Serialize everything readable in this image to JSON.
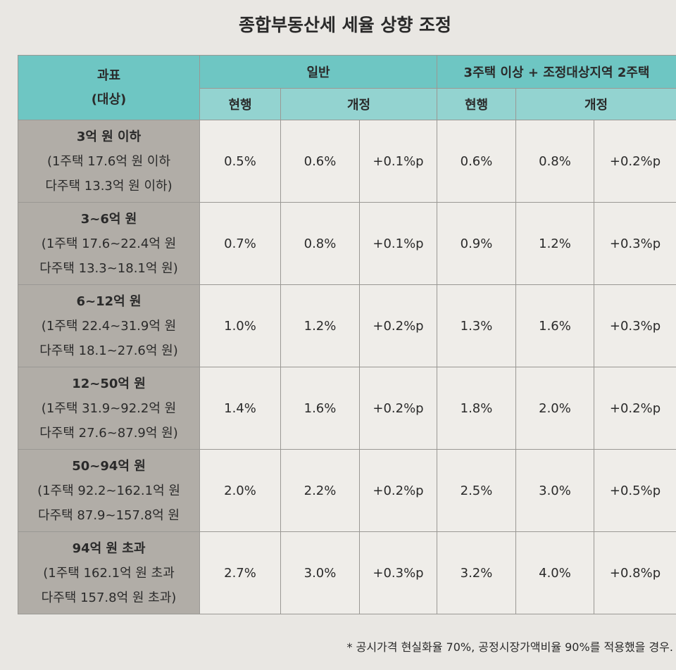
{
  "title": "종합부동산세 세율 상향 조정",
  "table": {
    "header": {
      "label": [
        "과표",
        "(대상)"
      ],
      "groups": [
        "일반",
        "3주택 이상 + 조정대상지역 2주택"
      ],
      "sub": [
        "현행",
        "개정",
        "현행",
        "개정"
      ]
    },
    "rows": [
      {
        "label": [
          "3억 원 이하",
          "(1주택 17.6억 원 이하",
          "다주택 13.3억 원 이하)"
        ],
        "cells": [
          "0.5%",
          "0.6%",
          "+0.1%p",
          "0.6%",
          "0.8%",
          "+0.2%p"
        ]
      },
      {
        "label": [
          "3~6억 원",
          "(1주택 17.6~22.4억 원",
          "다주택 13.3~18.1억 원)"
        ],
        "cells": [
          "0.7%",
          "0.8%",
          "+0.1%p",
          "0.9%",
          "1.2%",
          "+0.3%p"
        ]
      },
      {
        "label": [
          "6~12억 원",
          "(1주택 22.4~31.9억 원",
          "다주택 18.1~27.6억 원)"
        ],
        "cells": [
          "1.0%",
          "1.2%",
          "+0.2%p",
          "1.3%",
          "1.6%",
          "+0.3%p"
        ]
      },
      {
        "label": [
          "12~50억 원",
          "(1주택 31.9~92.2억 원",
          "다주택 27.6~87.9억 원)"
        ],
        "cells": [
          "1.4%",
          "1.6%",
          "+0.2%p",
          "1.8%",
          "2.0%",
          "+0.2%p"
        ]
      },
      {
        "label": [
          "50~94억 원",
          "(1주택 92.2~162.1억 원",
          "다주택 87.9~157.8억 원"
        ],
        "cells": [
          "2.0%",
          "2.2%",
          "+0.2%p",
          "2.5%",
          "3.0%",
          "+0.5%p"
        ]
      },
      {
        "label": [
          "94억 원 초과",
          "(1주택 162.1억 원 초과",
          "다주택 157.8억 원 초과)"
        ],
        "cells": [
          "2.7%",
          "3.0%",
          "+0.3%p",
          "3.2%",
          "4.0%",
          "+0.8%p"
        ]
      }
    ]
  },
  "footnote": "* 공시가격 현실화율 70%, 공정시장가액비율 90%를 적용했을 경우."
}
